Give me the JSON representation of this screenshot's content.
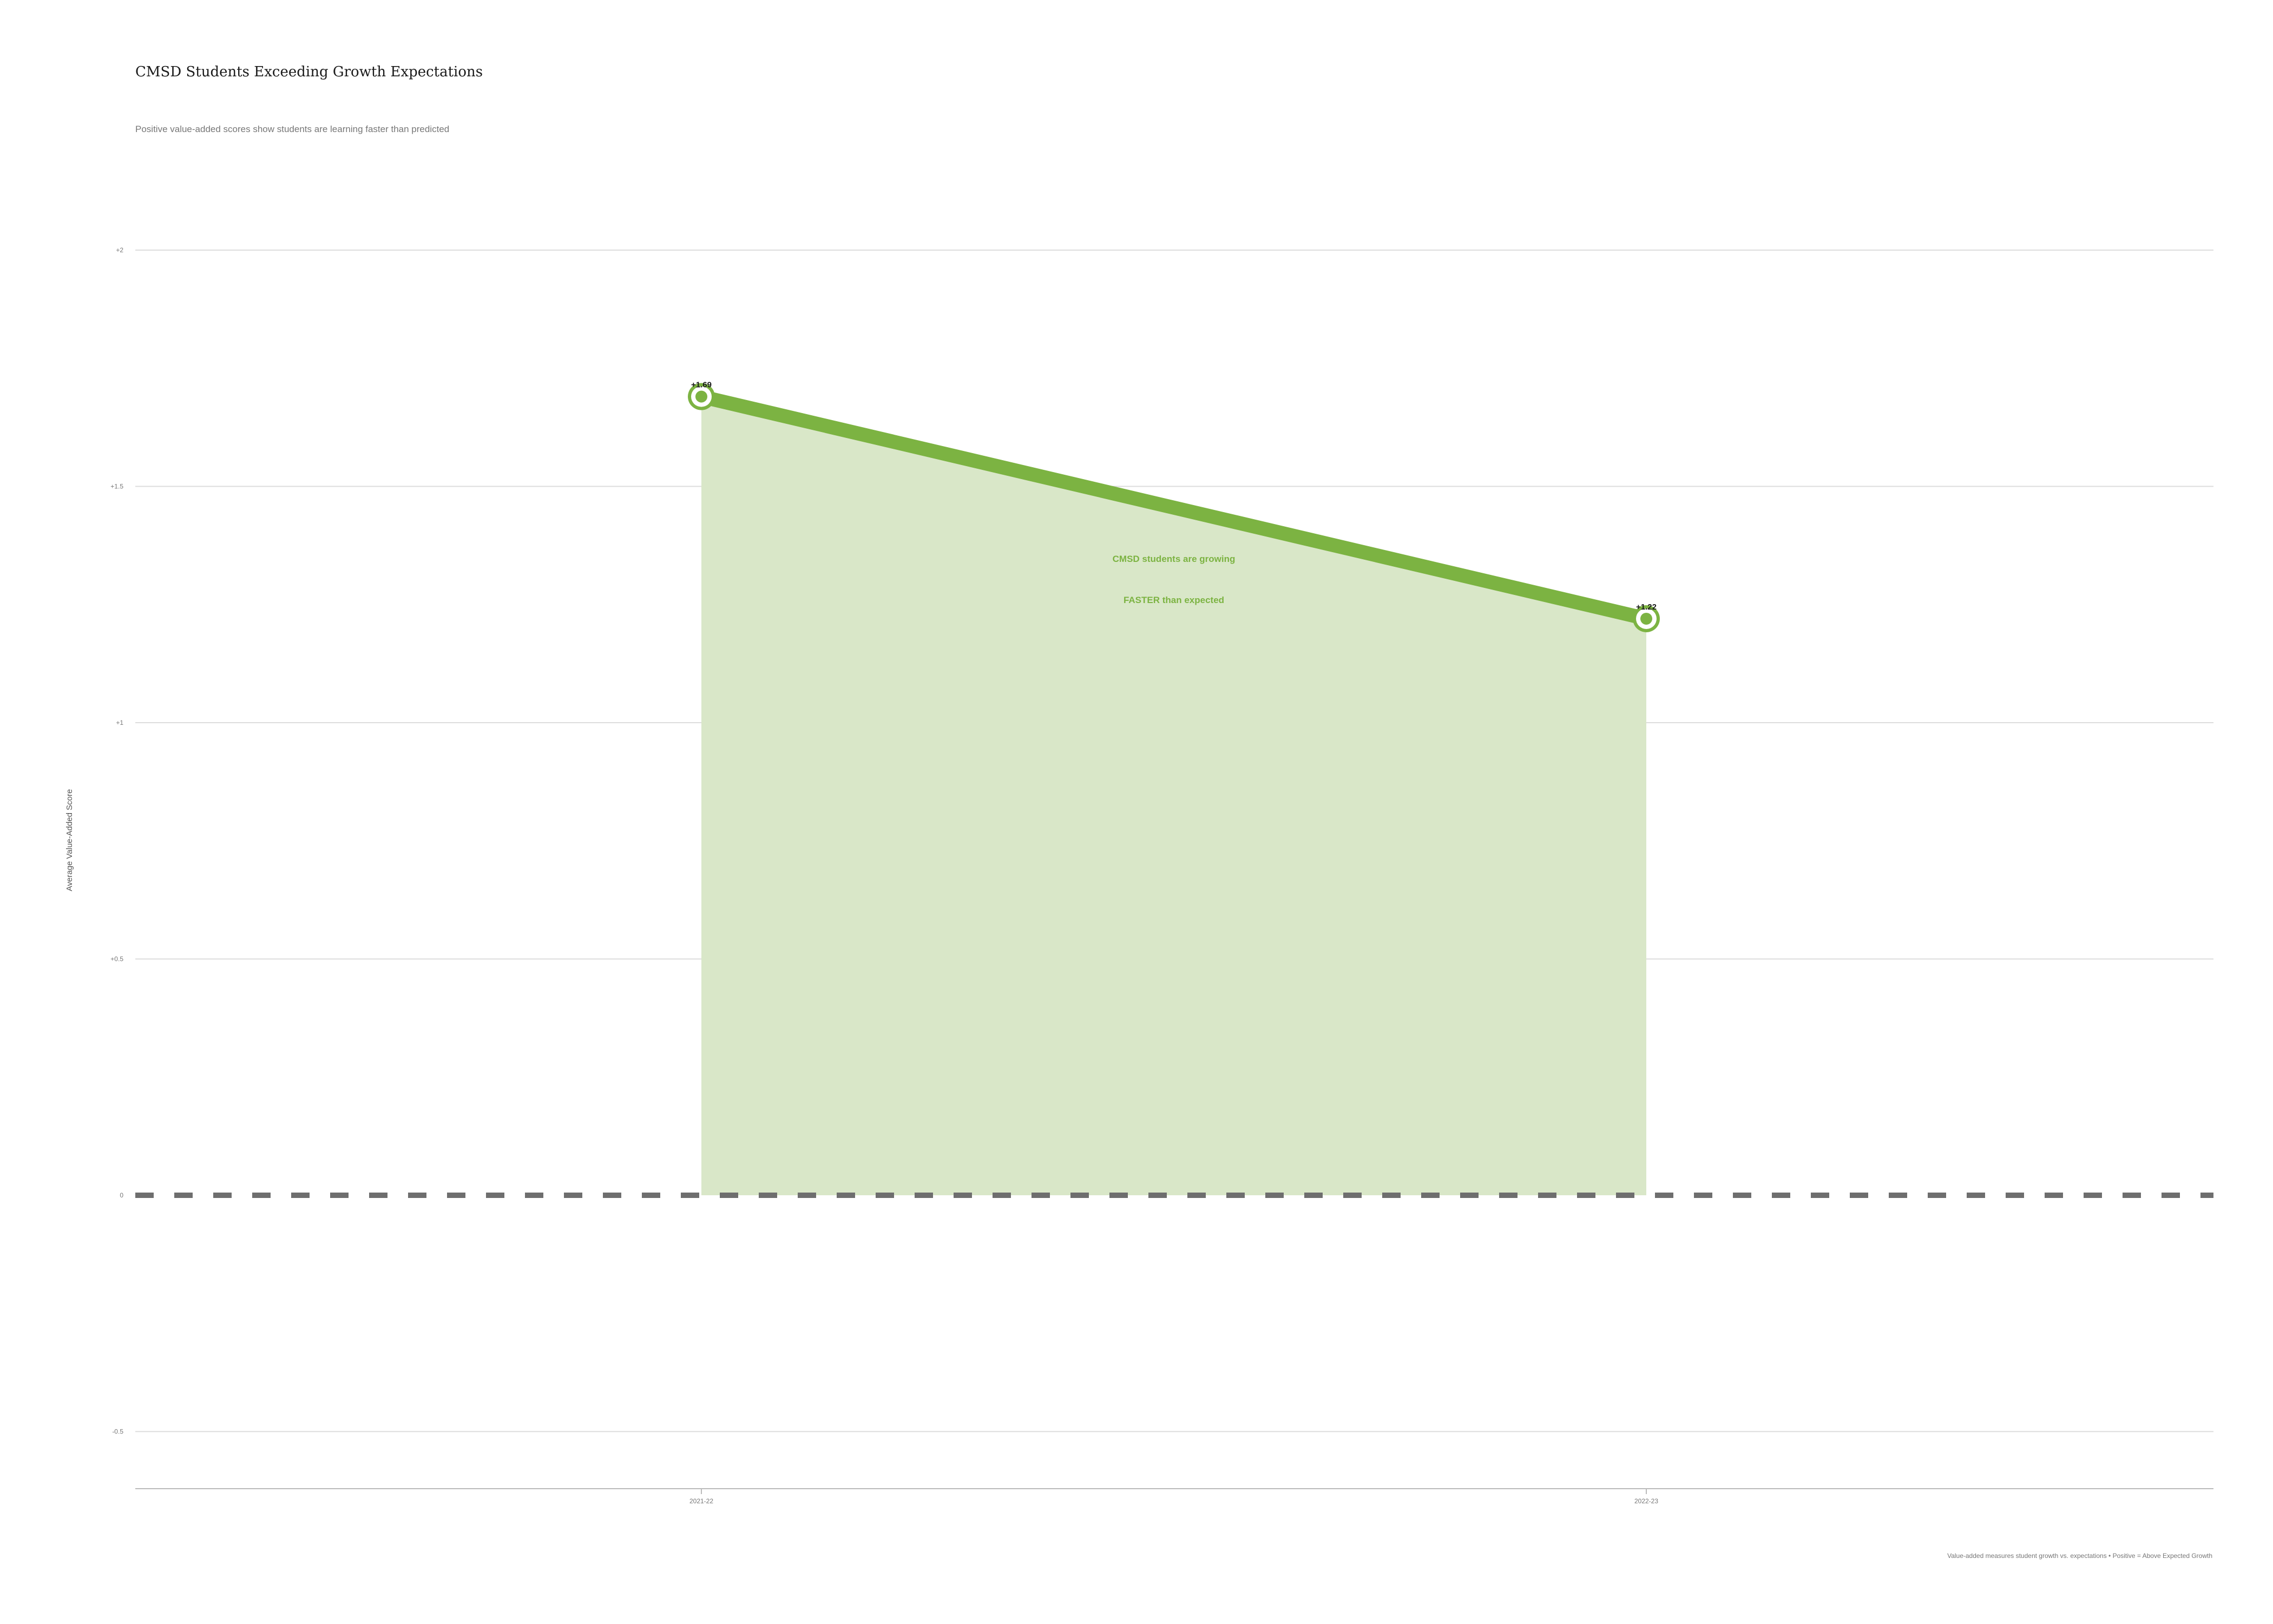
{
  "title": "CMSD Students Exceeding Growth Expectations",
  "subtitle": "Positive value-added scores show students are learning faster than predicted",
  "footer": "Value-added measures student growth vs. expectations • Positive = Above Expected Growth",
  "colors": {
    "line": "#7cb342",
    "area": "#d9e7c8",
    "baseline": "#6e6e6e",
    "grid": "#dddddd",
    "axis": "#bbbbbb"
  },
  "chart_data": {
    "type": "area",
    "title": "CMSD Students Exceeding Growth Expectations",
    "subtitle": "Positive value-added scores show students are learning faster than predicted",
    "xlabel": "",
    "ylabel": "Average Value-Added Score",
    "categories": [
      "2021-22",
      "2022-23"
    ],
    "series": [
      {
        "values": [
          1.69,
          1.22
        ],
        "labels": [
          "+1.69",
          "+1.22"
        ]
      }
    ],
    "ylim": [
      -0.625,
      2
    ],
    "yticks": [
      -0.5,
      0,
      0.5,
      1,
      1.5,
      2
    ],
    "ytick_labels": [
      "-0.5",
      "0",
      "+0.5",
      "+1",
      "+1.5",
      "+2"
    ],
    "baseline": 0,
    "grid": true,
    "annotation": [
      "CMSD students are growing",
      "FASTER than expected"
    ]
  }
}
